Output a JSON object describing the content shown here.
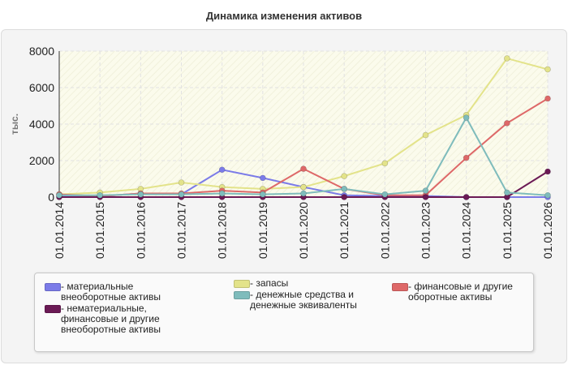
{
  "chart_data": {
    "type": "line",
    "title": "Динамика изменения активов",
    "ylabel": "тыс.",
    "xlabel": "",
    "ylim": [
      0,
      8000
    ],
    "yticks": [
      "0",
      "2000",
      "4000",
      "6000",
      "8000"
    ],
    "grid": true,
    "legend_position": "bottom",
    "categories": [
      "01.01.2014",
      "01.01.2015",
      "01.01.2016",
      "01.01.2017",
      "01.01.2018",
      "01.01.2019",
      "01.01.2020",
      "01.01.2021",
      "01.01.2022",
      "01.01.2023",
      "01.01.2024",
      "01.01.2025",
      "01.01.2026"
    ],
    "series": [
      {
        "name": "материальные внеоборотные активы",
        "color": "#7b7be8",
        "values": [
          50,
          50,
          200,
          150,
          1500,
          1050,
          550,
          100,
          60,
          60,
          0,
          0,
          0
        ]
      },
      {
        "name": "запасы",
        "color": "#e3e38a",
        "values": [
          150,
          250,
          450,
          800,
          550,
          450,
          550,
          1150,
          1850,
          3400,
          4500,
          7600,
          7000
        ]
      },
      {
        "name": "финансовые и другие оборотные активы",
        "color": "#de6868",
        "values": [
          150,
          50,
          200,
          200,
          350,
          250,
          1550,
          450,
          100,
          100,
          2150,
          4050,
          5400
        ]
      },
      {
        "name": "нематериальные, финансовые и другие внеоборотные активы",
        "color": "#6b1a55",
        "values": [
          0,
          0,
          0,
          0,
          0,
          0,
          0,
          0,
          0,
          0,
          0,
          0,
          1400
        ]
      },
      {
        "name": "денежные средства и денежные эквиваленты",
        "color": "#7fbcbc",
        "values": [
          100,
          100,
          150,
          150,
          200,
          150,
          200,
          450,
          150,
          350,
          4350,
          250,
          100
        ]
      }
    ]
  }
}
